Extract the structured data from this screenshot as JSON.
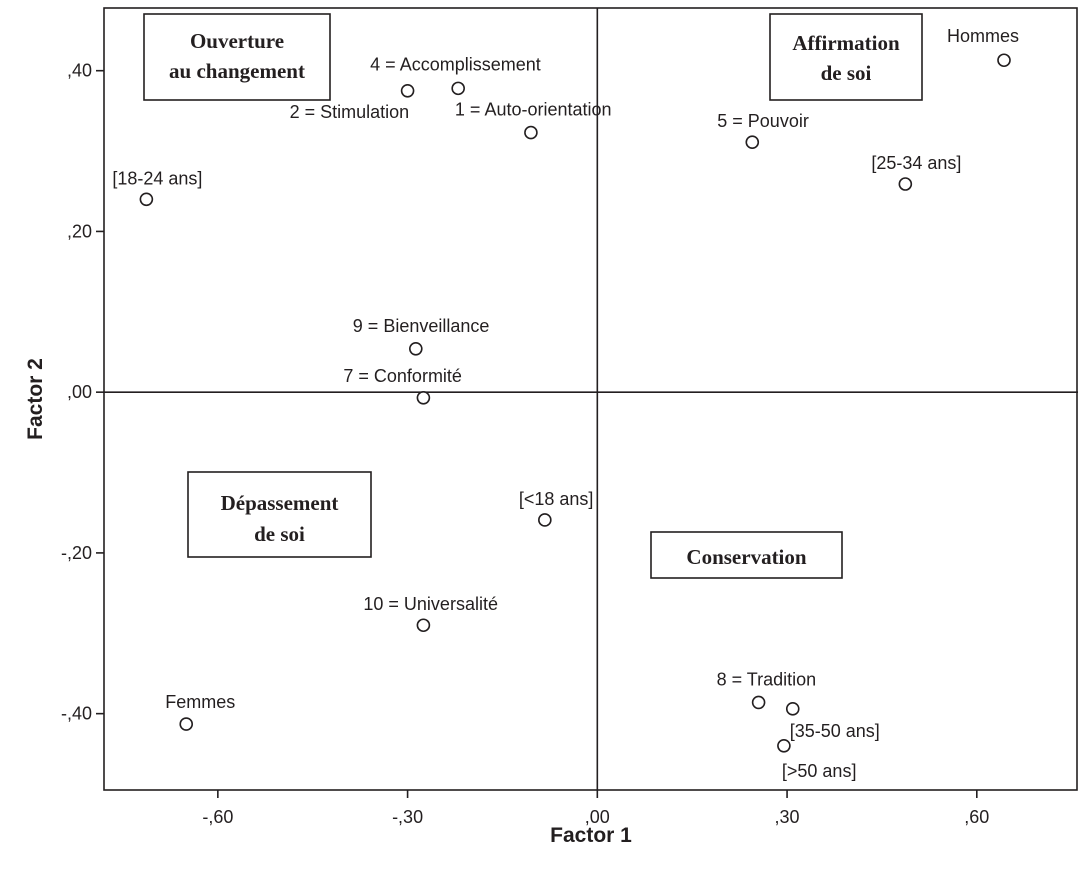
{
  "chart_data": {
    "type": "scatter",
    "xlabel": "Factor 1",
    "ylabel": "Factor 2",
    "xlim": [
      -0.78,
      0.76
    ],
    "ylim": [
      -0.495,
      0.478
    ],
    "x_ticks": [
      {
        "value": -0.6,
        "label": "-,60"
      },
      {
        "value": -0.3,
        "label": "-,30"
      },
      {
        "value": 0.0,
        "label": ",00"
      },
      {
        "value": 0.3,
        "label": ",30"
      },
      {
        "value": 0.6,
        "label": ",60"
      }
    ],
    "y_ticks": [
      {
        "value": 0.4,
        "label": ",40"
      },
      {
        "value": 0.2,
        "label": ",20"
      },
      {
        "value": 0.0,
        "label": ",00"
      },
      {
        "value": -0.2,
        "label": "-,20"
      },
      {
        "value": -0.4,
        "label": "-,40"
      }
    ],
    "reference_lines": {
      "x": 0.0,
      "y": 0.0
    },
    "grid": false,
    "points": [
      {
        "label": "4 = Accomplissement",
        "x": -0.22,
        "y": 0.378
      },
      {
        "label": "2 = Stimulation",
        "x": -0.3,
        "y": 0.375
      },
      {
        "label": "1 = Auto-orientation",
        "x": -0.105,
        "y": 0.323
      },
      {
        "label": "[18-24 ans]",
        "x": -0.713,
        "y": 0.24
      },
      {
        "label": "Hommes",
        "x": 0.643,
        "y": 0.413
      },
      {
        "label": "5 = Pouvoir",
        "x": 0.245,
        "y": 0.311
      },
      {
        "label": "[25-34 ans]",
        "x": 0.487,
        "y": 0.259
      },
      {
        "label": "9 = Bienveillance",
        "x": -0.287,
        "y": 0.054
      },
      {
        "label": "7 = Conformité",
        "x": -0.275,
        "y": -0.007
      },
      {
        "label": "[<18 ans]",
        "x": -0.083,
        "y": -0.159
      },
      {
        "label": "10 = Universalité",
        "x": -0.275,
        "y": -0.29
      },
      {
        "label": "Femmes",
        "x": -0.65,
        "y": -0.413
      },
      {
        "label": "8 = Tradition",
        "x": 0.255,
        "y": -0.386
      },
      {
        "label": "[35-50 ans]",
        "x": 0.309,
        "y": -0.394
      },
      {
        "label": "[>50 ans]",
        "x": 0.295,
        "y": -0.44
      }
    ],
    "annotations": [
      {
        "lines": [
          "Ouverture",
          "au changement"
        ]
      },
      {
        "lines": [
          "Affirmation",
          "de soi"
        ]
      },
      {
        "lines": [
          "Dépassement",
          "de soi"
        ]
      },
      {
        "lines": [
          "Conservation"
        ]
      }
    ]
  }
}
